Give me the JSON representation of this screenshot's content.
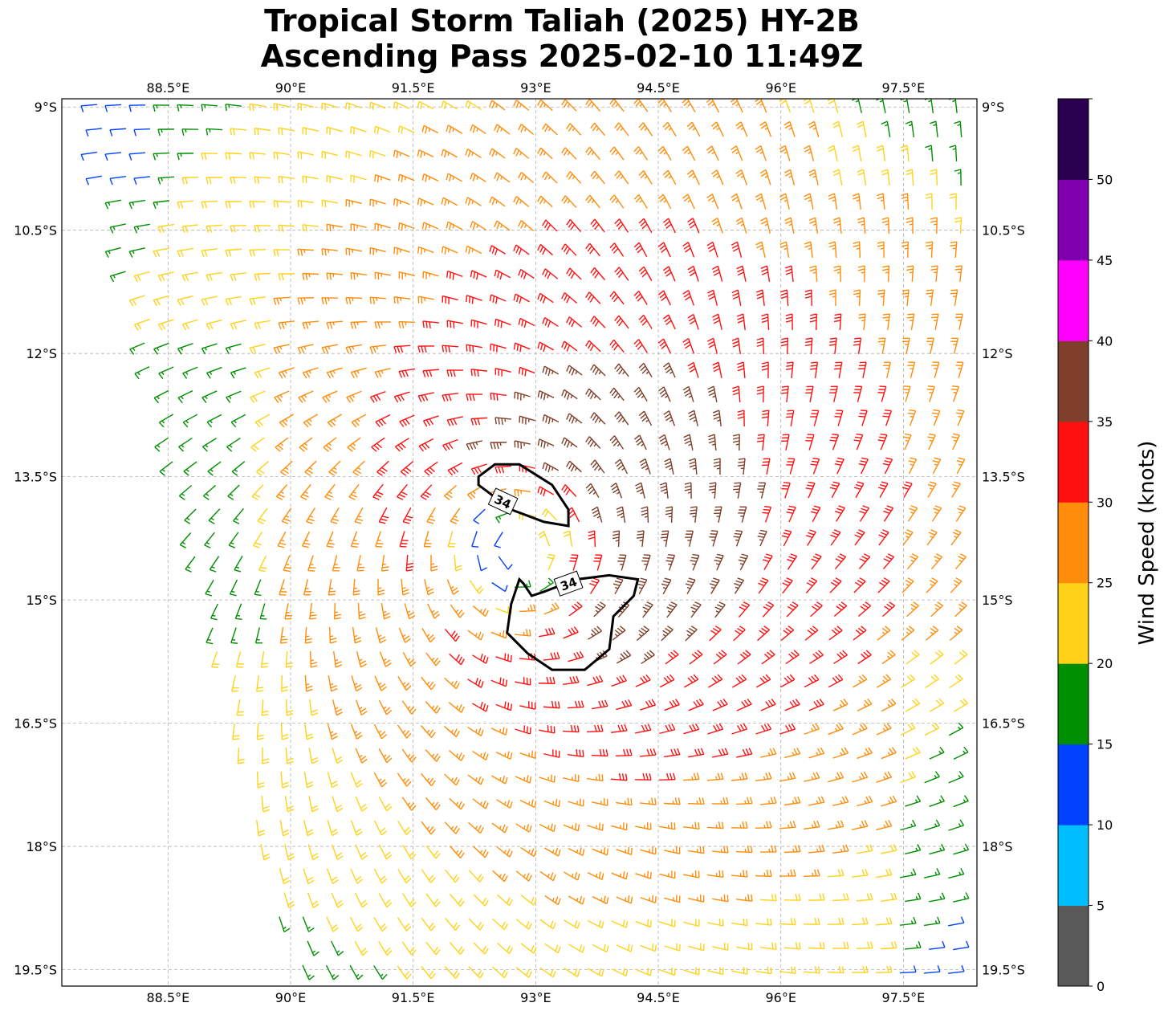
{
  "title": {
    "line1": "Tropical Storm Taliah (2025) HY-2B",
    "line2": "Ascending Pass 2025-02-10 11:49Z"
  },
  "map": {
    "lon_range": [
      87.2,
      98.4
    ],
    "lat_range": [
      -19.7,
      -8.9
    ],
    "lon_ticks": [
      {
        "value": 88.5,
        "label": "88.5°E"
      },
      {
        "value": 90.0,
        "label": "90°E"
      },
      {
        "value": 91.5,
        "label": "91.5°E"
      },
      {
        "value": 93.0,
        "label": "93°E"
      },
      {
        "value": 94.5,
        "label": "94.5°E"
      },
      {
        "value": 96.0,
        "label": "96°E"
      },
      {
        "value": 97.5,
        "label": "97.5°E"
      }
    ],
    "lat_ticks": [
      {
        "value": -9.0,
        "label": "9°S"
      },
      {
        "value": -10.5,
        "label": "10.5°S"
      },
      {
        "value": -12.0,
        "label": "12°S"
      },
      {
        "value": -13.5,
        "label": "13.5°S"
      },
      {
        "value": -15.0,
        "label": "15°S"
      },
      {
        "value": -16.5,
        "label": "16.5°S"
      },
      {
        "value": -18.0,
        "label": "18°S"
      },
      {
        "value": -19.5,
        "label": "19.5°S"
      }
    ],
    "gridlines": true,
    "storm_center": {
      "lon": 92.8,
      "lat": -14.4
    },
    "contour_34kt": {
      "label": "34",
      "northern_lobe": [
        [
          92.3,
          -13.5
        ],
        [
          92.5,
          -13.35
        ],
        [
          92.8,
          -13.35
        ],
        [
          93.2,
          -13.6
        ],
        [
          93.4,
          -13.9
        ],
        [
          93.4,
          -14.1
        ],
        [
          93.1,
          -14.05
        ],
        [
          92.7,
          -13.9
        ],
        [
          92.5,
          -13.75
        ],
        [
          92.3,
          -13.6
        ]
      ],
      "southern_lobe": [
        [
          92.8,
          -14.75
        ],
        [
          92.7,
          -15.05
        ],
        [
          92.65,
          -15.4
        ],
        [
          92.9,
          -15.65
        ],
        [
          93.2,
          -15.85
        ],
        [
          93.6,
          -15.85
        ],
        [
          93.9,
          -15.6
        ],
        [
          93.95,
          -15.2
        ],
        [
          94.2,
          -14.95
        ],
        [
          94.25,
          -14.75
        ],
        [
          93.9,
          -14.7
        ],
        [
          93.5,
          -14.75
        ],
        [
          93.1,
          -14.9
        ],
        [
          92.95,
          -14.95
        ],
        [
          92.85,
          -14.8
        ]
      ],
      "label_positions": [
        [
          92.6,
          -13.8
        ],
        [
          93.4,
          -14.8
        ]
      ]
    }
  },
  "colorbar": {
    "label": "Wind Speed (knots)",
    "tick_labels": [
      "0",
      "5",
      "10",
      "15",
      "20",
      "25",
      "30",
      "35",
      "40",
      "45",
      "50"
    ],
    "bins": [
      {
        "min": 0,
        "max": 5,
        "color": "#595959"
      },
      {
        "min": 5,
        "max": 10,
        "color": "#00bfff"
      },
      {
        "min": 10,
        "max": 15,
        "color": "#0040ff"
      },
      {
        "min": 15,
        "max": 20,
        "color": "#008f00"
      },
      {
        "min": 20,
        "max": 25,
        "color": "#ffd21a"
      },
      {
        "min": 25,
        "max": 30,
        "color": "#ff8c0a"
      },
      {
        "min": 30,
        "max": 35,
        "color": "#ff1010"
      },
      {
        "min": 35,
        "max": 40,
        "color": "#7f3f2a"
      },
      {
        "min": 40,
        "max": 45,
        "color": "#ff00ff"
      },
      {
        "min": 45,
        "max": 50,
        "color": "#8000b0"
      },
      {
        "min": 50,
        "max": 55,
        "color": "#2a0050"
      }
    ]
  }
}
